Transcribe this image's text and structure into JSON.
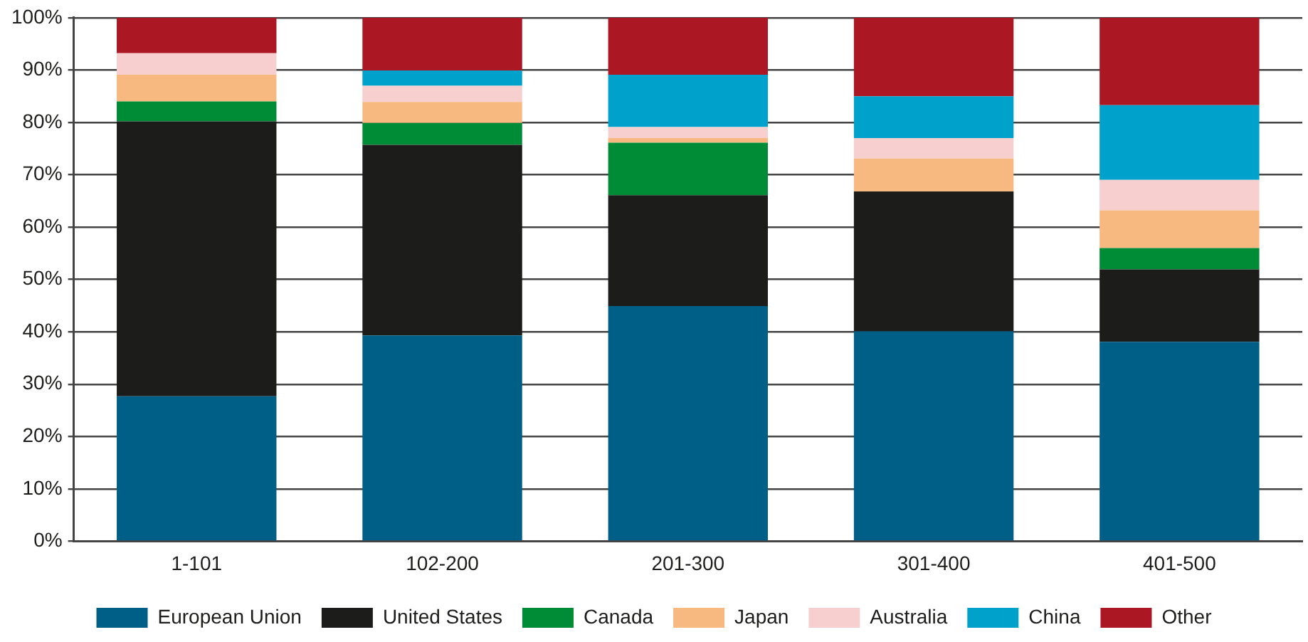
{
  "chart_data": {
    "type": "bar",
    "stacked": true,
    "categories": [
      "1-101",
      "102-200",
      "201-300",
      "301-400",
      "401-500"
    ],
    "series": [
      {
        "name": "European Union",
        "color": "#005f87",
        "values": [
          27.7,
          39.3,
          44.9,
          40.1,
          38.1
        ]
      },
      {
        "name": "United States",
        "color": "#1c1c1a",
        "values": [
          52.5,
          36.4,
          21.2,
          26.7,
          13.8
        ]
      },
      {
        "name": "Canada",
        "color": "#008c37",
        "values": [
          3.8,
          4.2,
          10.0,
          0,
          4.1
        ]
      },
      {
        "name": "Japan",
        "color": "#f7b980",
        "values": [
          5.1,
          4.0,
          0.9,
          6.3,
          7.2
        ]
      },
      {
        "name": "Australia",
        "color": "#f7cfcf",
        "values": [
          4.1,
          3.1,
          2.1,
          3.9,
          5.8
        ]
      },
      {
        "name": "China",
        "color": "#00a2cb",
        "values": [
          0,
          2.9,
          10.0,
          8.0,
          14.3
        ]
      },
      {
        "name": "Other",
        "color": "#ab1722",
        "values": [
          6.8,
          10.1,
          10.9,
          15.0,
          16.7
        ]
      }
    ],
    "ylim": [
      0,
      100
    ],
    "yticks": [
      {
        "value": 0,
        "label": "0%"
      },
      {
        "value": 10,
        "label": "10%"
      },
      {
        "value": 20,
        "label": "20%"
      },
      {
        "value": 30,
        "label": "30%"
      },
      {
        "value": 40,
        "label": "40%"
      },
      {
        "value": 50,
        "label": "50%"
      },
      {
        "value": 60,
        "label": "60%"
      },
      {
        "value": 70,
        "label": "70%"
      },
      {
        "value": 80,
        "label": "80%"
      },
      {
        "value": 90,
        "label": "90%"
      },
      {
        "value": 100,
        "label": "100%"
      }
    ],
    "grid": "y",
    "legend": "bottom"
  }
}
